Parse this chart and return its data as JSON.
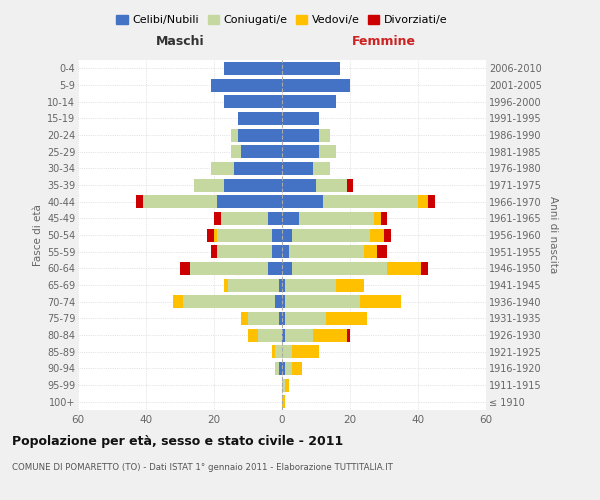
{
  "age_groups": [
    "100+",
    "95-99",
    "90-94",
    "85-89",
    "80-84",
    "75-79",
    "70-74",
    "65-69",
    "60-64",
    "55-59",
    "50-54",
    "45-49",
    "40-44",
    "35-39",
    "30-34",
    "25-29",
    "20-24",
    "15-19",
    "10-14",
    "5-9",
    "0-4"
  ],
  "birth_years": [
    "≤ 1910",
    "1911-1915",
    "1916-1920",
    "1921-1925",
    "1926-1930",
    "1931-1935",
    "1936-1940",
    "1941-1945",
    "1946-1950",
    "1951-1955",
    "1956-1960",
    "1961-1965",
    "1966-1970",
    "1971-1975",
    "1976-1980",
    "1981-1985",
    "1986-1990",
    "1991-1995",
    "1996-2000",
    "2001-2005",
    "2006-2010"
  ],
  "males": {
    "celibi": [
      0,
      0,
      1,
      0,
      0,
      1,
      2,
      1,
      4,
      3,
      3,
      4,
      19,
      17,
      14,
      12,
      13,
      13,
      17,
      21,
      17
    ],
    "coniugati": [
      0,
      0,
      1,
      2,
      7,
      9,
      27,
      15,
      23,
      16,
      16,
      14,
      22,
      9,
      7,
      3,
      2,
      0,
      0,
      0,
      0
    ],
    "vedovi": [
      0,
      0,
      0,
      1,
      3,
      2,
      3,
      1,
      0,
      0,
      1,
      0,
      0,
      0,
      0,
      0,
      0,
      0,
      0,
      0,
      0
    ],
    "divorziati": [
      0,
      0,
      0,
      0,
      0,
      0,
      0,
      0,
      3,
      2,
      2,
      2,
      2,
      0,
      0,
      0,
      0,
      0,
      0,
      0,
      0
    ]
  },
  "females": {
    "nubili": [
      0,
      0,
      1,
      0,
      1,
      1,
      1,
      1,
      3,
      2,
      3,
      5,
      12,
      10,
      9,
      11,
      11,
      11,
      16,
      20,
      17
    ],
    "coniugate": [
      0,
      1,
      2,
      3,
      8,
      12,
      22,
      15,
      28,
      22,
      23,
      22,
      28,
      9,
      5,
      5,
      3,
      0,
      0,
      0,
      0
    ],
    "vedove": [
      1,
      1,
      3,
      8,
      10,
      12,
      12,
      8,
      10,
      4,
      4,
      2,
      3,
      0,
      0,
      0,
      0,
      0,
      0,
      0,
      0
    ],
    "divorziate": [
      0,
      0,
      0,
      0,
      1,
      0,
      0,
      0,
      2,
      3,
      2,
      2,
      2,
      2,
      0,
      0,
      0,
      0,
      0,
      0,
      0
    ]
  },
  "colors": {
    "celibi_nubili": "#4472c4",
    "coniugati": "#c5d8a0",
    "vedovi": "#ffc000",
    "divorziati": "#cc0000"
  },
  "title": "Popolazione per età, sesso e stato civile - 2011",
  "subtitle": "COMUNE DI POMARETTO (TO) - Dati ISTAT 1° gennaio 2011 - Elaborazione TUTTITALIA.IT",
  "xlabel_left": "Maschi",
  "xlabel_right": "Femmine",
  "ylabel_left": "Fasce di età",
  "ylabel_right": "Anni di nascita",
  "xlim": 60,
  "background_color": "#f0f0f0",
  "plot_bg": "#ffffff",
  "legend_labels": [
    "Celibi/Nubili",
    "Coniugati/e",
    "Vedovi/e",
    "Divorziati/e"
  ]
}
